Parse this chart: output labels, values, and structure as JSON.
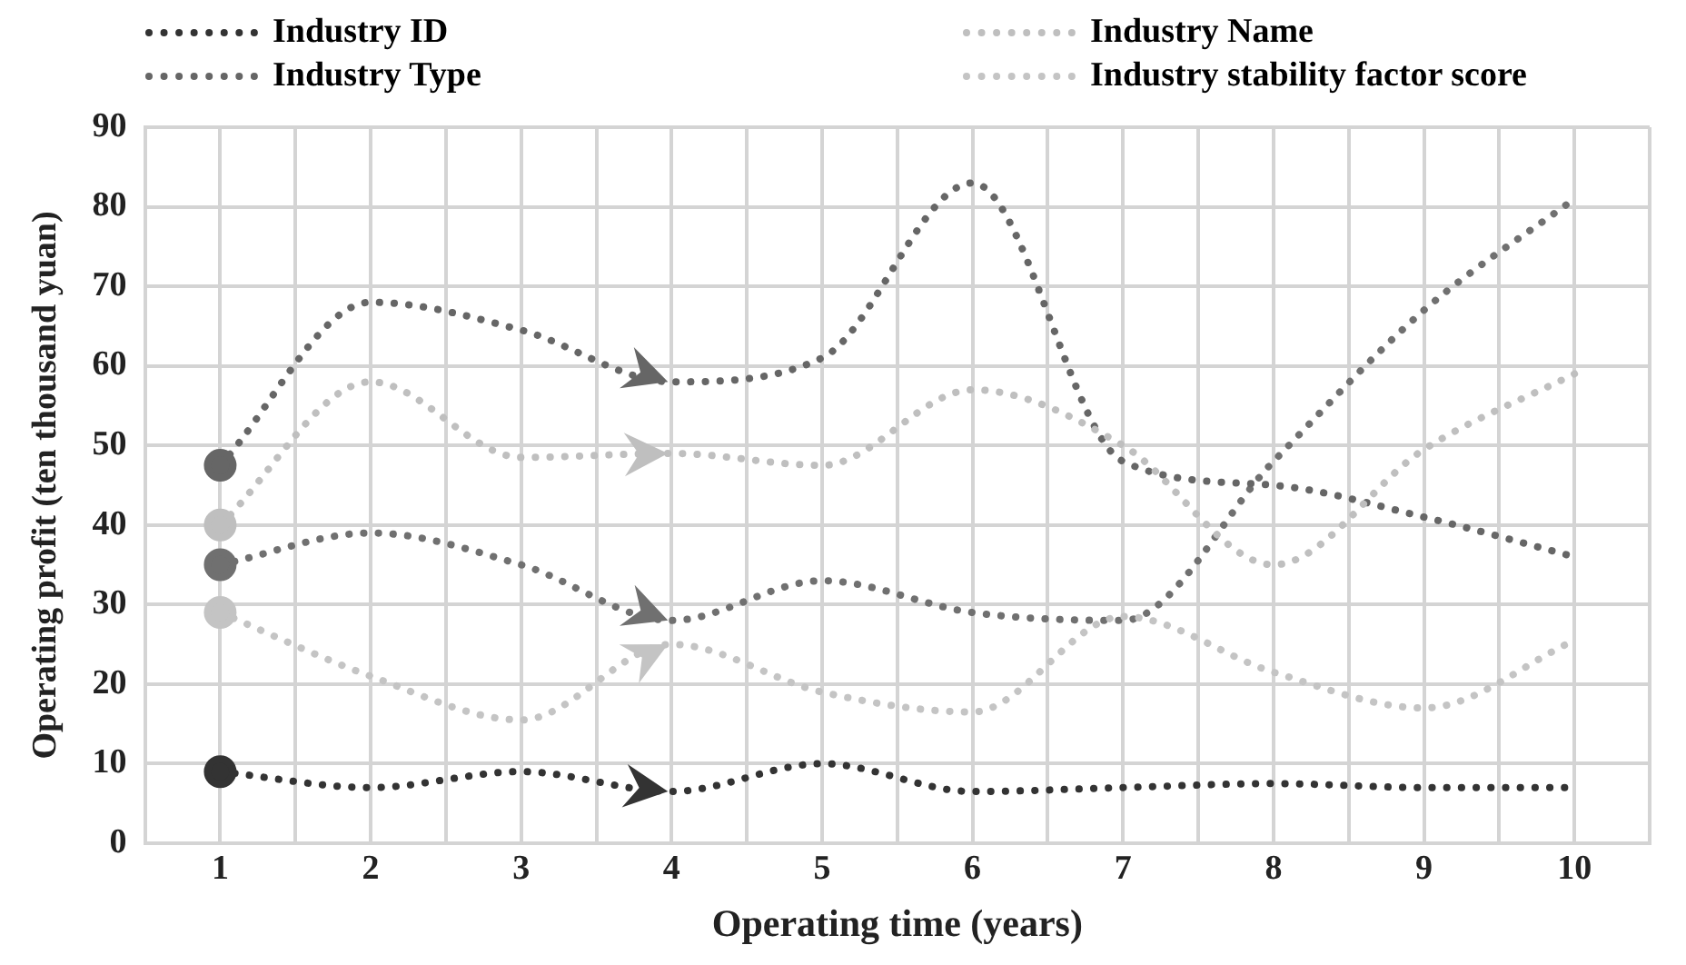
{
  "chart_data": {
    "type": "line",
    "xlabel": "Operating time (years)",
    "ylabel": "Operating profit (ten thousand yuan)",
    "x": [
      1,
      2,
      3,
      4,
      5,
      6,
      7,
      8,
      9,
      10
    ],
    "xlim": [
      0.5,
      10.5
    ],
    "xticks": [
      {
        "value": 0.5,
        "label": null
      },
      1,
      {
        "value": 1.5,
        "label": null
      },
      2,
      {
        "value": 2.5,
        "label": null
      },
      3,
      {
        "value": 3.5,
        "label": null
      },
      4,
      {
        "value": 4.5,
        "label": null
      },
      5,
      {
        "value": 5.5,
        "label": null
      },
      6,
      {
        "value": 6.5,
        "label": null
      },
      7,
      {
        "value": 7.5,
        "label": null
      },
      8,
      {
        "value": 8.5,
        "label": null
      },
      9,
      {
        "value": 9.5,
        "label": null
      },
      10,
      {
        "value": 10.5,
        "label": null
      }
    ],
    "ylim": [
      0,
      90
    ],
    "yticks": [
      0,
      10,
      20,
      30,
      40,
      50,
      60,
      70,
      80,
      90
    ],
    "grid": true,
    "legend": "top",
    "line_style": "dotted",
    "series": [
      {
        "name": "Industry ID",
        "color": "#333333",
        "values": [
          9,
          7,
          9,
          6.5,
          10,
          6.5,
          7,
          7.5,
          7,
          7
        ]
      },
      {
        "name": "Industry Name",
        "color": "#bfbfbf",
        "values": [
          40,
          58,
          48.5,
          49,
          47.5,
          57,
          50,
          35,
          49.5,
          59
        ]
      },
      {
        "name": "Industry Type",
        "color": "#666666",
        "values": [
          47.5,
          68,
          64.5,
          58,
          61,
          83,
          48,
          45,
          41,
          36
        ]
      },
      {
        "name": "Industry stability factor score",
        "color": "#c4c4c4",
        "values": [
          29,
          21,
          15.5,
          25,
          19,
          16.5,
          28.5,
          21.5,
          17,
          25.5
        ]
      },
      {
        "color": "#707070",
        "values": [
          35,
          39,
          35,
          28,
          33,
          29,
          28,
          48,
          67,
          81
        ]
      }
    ]
  }
}
